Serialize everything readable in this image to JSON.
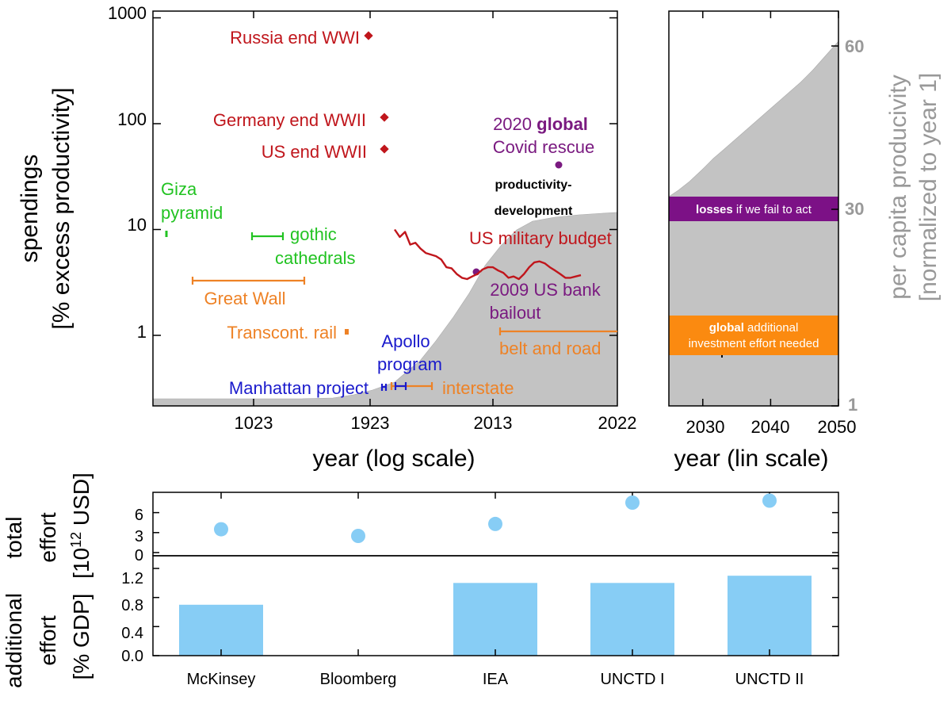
{
  "colors": {
    "red": "#c0161c",
    "green": "#22c322",
    "orange": "#ee8226",
    "blue": "#1a1acc",
    "purple": "#7a1a80",
    "gray_area": "#c3c3c3",
    "axis_gray": "#999999",
    "light_blue": "#87cdf5",
    "orange_band": "#fb8a10",
    "purple_band": "#7c1186"
  },
  "chart_data": [
    {
      "type": "scatter",
      "panel": "spendings",
      "ylabel_line1": "spendings",
      "ylabel_line2": "[% excess productivity]",
      "xlabel": "year (log scale)",
      "yscale": "log",
      "ylim": [
        0.2,
        1000
      ],
      "y_ticks": [
        "1000",
        "100",
        "10",
        "1"
      ],
      "x_ticks": [
        "1023",
        "1923",
        "2013",
        "2022"
      ],
      "area_label_line1": "productivity-",
      "area_label_line2": "development",
      "points": [
        {
          "label": "Russia end WWI",
          "year": 1917,
          "value": 600
        },
        {
          "label": "Germany end WWII",
          "year": 1945,
          "value": 100
        },
        {
          "label": "US end WWII",
          "year": 1945,
          "value": 50
        },
        {
          "label_line1": "2020",
          "label_bold": "global",
          "label_line2": "Covid rescue",
          "year": 2020,
          "value": 37
        },
        {
          "label_line1": "2009 US bank",
          "label_line2": "bailout",
          "year": 2009,
          "value": 3.6
        }
      ],
      "ranges": [
        {
          "label_line1": "Giza",
          "label_line2": "pyramid",
          "value": 8.5
        },
        {
          "label_line1": "gothic",
          "label_line2": "cathedrals",
          "value": 7.5
        },
        {
          "label": "Great Wall",
          "value": 3
        },
        {
          "label": "Transcont. rail",
          "year": 1869,
          "value": 1
        },
        {
          "label": "belt and road",
          "start": 2013,
          "value": 1
        },
        {
          "label_line1": "Apollo",
          "label_line2": "program",
          "value": 0.3
        },
        {
          "label": "Manhattan project",
          "start": 1942,
          "end": 1946,
          "value": 0.3
        },
        {
          "label": "interstate",
          "start": 1956,
          "end": 1992,
          "value": 0.3
        }
      ],
      "series": [
        {
          "name": "US military budget",
          "x": [
            1950,
            1952,
            1954,
            1956,
            1958,
            1960,
            1962,
            1964,
            1966,
            1968,
            1970,
            1972,
            1974,
            1976,
            1978,
            1980,
            1982,
            1984,
            1986,
            1988,
            1990,
            1992,
            1994,
            1996,
            1998,
            2000,
            2002,
            2004,
            2006,
            2008,
            2010,
            2012,
            2014,
            2016,
            2018,
            2020,
            2022
          ],
          "values": [
            10,
            8.5,
            9.5,
            7.2,
            7.5,
            6.6,
            6,
            5.8,
            5.6,
            5.2,
            4.4,
            4.3,
            3.8,
            3.5,
            3.4,
            3.6,
            3.8,
            4.2,
            4.4,
            4.4,
            4.1,
            3.9,
            3.5,
            3.6,
            3.4,
            3.8,
            4.4,
            4.9,
            5,
            4.8,
            4.4,
            4.1,
            3.8,
            3.5,
            3.5,
            3.6,
            3.7
          ]
        }
      ]
    },
    {
      "type": "area",
      "panel": "productivity",
      "ylabel_line1": "per capita producivity",
      "ylabel_line2": "[normalized to year 1]",
      "xlabel": "year (lin scale)",
      "xlim": [
        2025,
        2050
      ],
      "x_ticks": [
        "2030",
        "2040",
        "2050"
      ],
      "y_ticks": [
        "60",
        "30",
        "1"
      ],
      "bands": [
        {
          "label_bold": "losses",
          "label_rest": " if we fail to act"
        },
        {
          "label_bold_line1": "global",
          "label_rest_line1": " additional",
          "label_line2": "investment effort needed"
        }
      ]
    },
    {
      "type": "scatter",
      "panel": "total effort",
      "ylabel_line1": "total",
      "ylabel_line2": "effort",
      "ylabel_line3": "[10",
      "ylabel_sup": "12",
      "ylabel_line3_end": " USD]",
      "ylim": [
        0,
        8.5
      ],
      "y_ticks": [
        "6",
        "3",
        "0"
      ],
      "categories": [
        "McKinsey",
        "Bloomberg",
        "IEA",
        "UNCTD I",
        "UNCTD II"
      ],
      "values": [
        3.5,
        2.5,
        4.3,
        7.5,
        7.8
      ]
    },
    {
      "type": "bar",
      "panel": "additional effort",
      "ylabel_line1": "additional",
      "ylabel_line2": "effort",
      "ylabel_line3": "[% GDP]",
      "ylim": [
        0,
        1.4
      ],
      "y_ticks": [
        "1.2",
        "0.8",
        "0.4",
        "0.0"
      ],
      "categories": [
        "McKinsey",
        "Bloomberg",
        "IEA",
        "UNCTD I",
        "UNCTD II"
      ],
      "values": [
        0.7,
        0,
        1.0,
        1.0,
        1.1
      ]
    }
  ]
}
